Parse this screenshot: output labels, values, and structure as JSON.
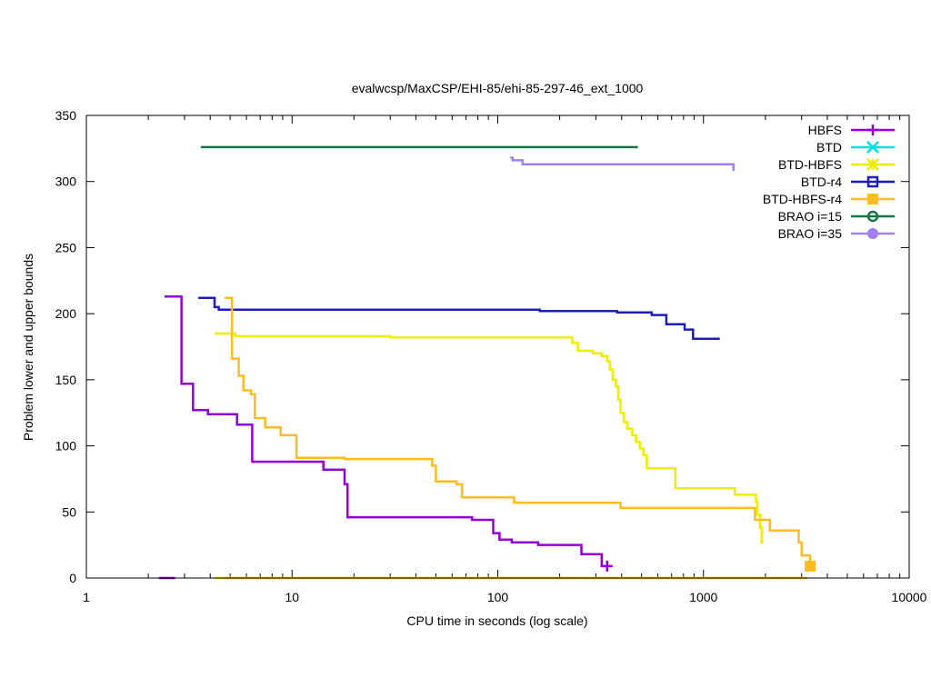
{
  "chart_data": {
    "type": "line",
    "title": "evalwcsp/MaxCSP/EHI-85/ehi-85-297-46_ext_1000",
    "xlabel": "CPU time in seconds (log scale)",
    "ylabel": "Problem lower and upper bounds",
    "xscale": "log",
    "xlim": [
      1,
      10000
    ],
    "ylim": [
      0,
      350
    ],
    "xticks": [
      1,
      10,
      100,
      1000,
      10000
    ],
    "xtick_labels": [
      "1",
      "10",
      "100",
      "1000",
      "10000"
    ],
    "yticks": [
      0,
      50,
      100,
      150,
      200,
      250,
      300,
      350
    ],
    "ytick_labels": [
      "0",
      "50",
      "100",
      "150",
      "200",
      "250",
      "300",
      "350"
    ],
    "legend_position": "top-right",
    "series": [
      {
        "name": "HBFS",
        "color": "#9400d3",
        "marker": "plus",
        "upper": [
          [
            2.4,
            213
          ],
          [
            2.9,
            213
          ],
          [
            2.9,
            147
          ],
          [
            3.3,
            147
          ],
          [
            3.3,
            127
          ],
          [
            3.9,
            127
          ],
          [
            3.9,
            124
          ],
          [
            5.4,
            124
          ],
          [
            5.4,
            116
          ],
          [
            6.4,
            116
          ],
          [
            6.4,
            88
          ],
          [
            14.2,
            88
          ],
          [
            14.2,
            82
          ],
          [
            18.0,
            82
          ],
          [
            18.0,
            71
          ],
          [
            18.6,
            71
          ],
          [
            18.6,
            46
          ],
          [
            75,
            46
          ],
          [
            75,
            44
          ],
          [
            95,
            44
          ],
          [
            95,
            34
          ],
          [
            102,
            34
          ],
          [
            102,
            29
          ],
          [
            117,
            29
          ],
          [
            117,
            27
          ],
          [
            157,
            27
          ],
          [
            157,
            25
          ],
          [
            255,
            25
          ],
          [
            255,
            18
          ],
          [
            320,
            18
          ],
          [
            320,
            9
          ],
          [
            340,
            9
          ]
        ],
        "lower": [
          [
            2.25,
            0
          ],
          [
            2.7,
            0
          ]
        ],
        "markers": [
          [
            340,
            9
          ]
        ]
      },
      {
        "name": "BTD",
        "color": "#00ddee",
        "marker": "x",
        "upper": [],
        "lower": [],
        "markers": []
      },
      {
        "name": "BTD-HBFS",
        "color": "#eeee00",
        "marker": "star",
        "upper": [
          [
            4.2,
            185
          ],
          [
            5.3,
            185
          ],
          [
            5.3,
            183
          ],
          [
            30,
            183
          ],
          [
            30,
            182
          ],
          [
            230,
            182
          ],
          [
            230,
            178
          ],
          [
            245,
            178
          ],
          [
            245,
            172
          ],
          [
            290,
            172
          ],
          [
            290,
            170
          ],
          [
            320,
            170
          ],
          [
            320,
            168
          ],
          [
            340,
            168
          ],
          [
            340,
            164
          ],
          [
            350,
            164
          ],
          [
            350,
            158
          ],
          [
            362,
            158
          ],
          [
            362,
            150
          ],
          [
            375,
            150
          ],
          [
            375,
            145
          ],
          [
            385,
            145
          ],
          [
            385,
            135
          ],
          [
            395,
            135
          ],
          [
            395,
            125
          ],
          [
            410,
            125
          ],
          [
            410,
            118
          ],
          [
            425,
            118
          ],
          [
            425,
            113
          ],
          [
            450,
            113
          ],
          [
            450,
            108
          ],
          [
            470,
            108
          ],
          [
            470,
            103
          ],
          [
            490,
            103
          ],
          [
            490,
            98
          ],
          [
            510,
            98
          ],
          [
            510,
            93
          ],
          [
            530,
            93
          ],
          [
            530,
            83
          ],
          [
            730,
            83
          ],
          [
            730,
            68
          ],
          [
            1420,
            68
          ],
          [
            1420,
            63
          ],
          [
            1800,
            63
          ],
          [
            1800,
            58
          ],
          [
            1830,
            58
          ],
          [
            1830,
            48
          ],
          [
            1880,
            48
          ],
          [
            1880,
            38
          ],
          [
            1920,
            38
          ],
          [
            1920,
            26
          ]
        ],
        "lower": [
          [
            4.2,
            0
          ],
          [
            3000,
            0
          ]
        ],
        "markers": []
      },
      {
        "name": "BTD-r4",
        "color": "#1e1eb4",
        "marker": "square",
        "upper": [
          [
            3.5,
            212
          ],
          [
            4.2,
            212
          ],
          [
            4.2,
            205
          ],
          [
            4.4,
            205
          ],
          [
            4.4,
            203
          ],
          [
            160,
            203
          ],
          [
            160,
            202
          ],
          [
            380,
            202
          ],
          [
            380,
            201
          ],
          [
            560,
            201
          ],
          [
            560,
            199
          ],
          [
            660,
            199
          ],
          [
            660,
            192
          ],
          [
            810,
            192
          ],
          [
            810,
            188
          ],
          [
            890,
            188
          ],
          [
            890,
            181
          ],
          [
            1200,
            181
          ]
        ],
        "lower": [],
        "markers": []
      },
      {
        "name": "BTD-HBFS-r4",
        "color": "#ffbb22",
        "marker": "filled-square",
        "upper": [
          [
            4.7,
            212
          ],
          [
            5.1,
            212
          ],
          [
            5.1,
            166
          ],
          [
            5.5,
            166
          ],
          [
            5.5,
            153
          ],
          [
            5.8,
            153
          ],
          [
            5.8,
            142
          ],
          [
            6.3,
            142
          ],
          [
            6.3,
            139
          ],
          [
            6.6,
            139
          ],
          [
            6.6,
            121
          ],
          [
            7.4,
            121
          ],
          [
            7.4,
            114
          ],
          [
            8.8,
            114
          ],
          [
            8.8,
            108
          ],
          [
            10.5,
            108
          ],
          [
            10.5,
            91
          ],
          [
            18,
            91
          ],
          [
            18,
            90
          ],
          [
            48,
            90
          ],
          [
            48,
            85
          ],
          [
            50,
            85
          ],
          [
            50,
            73
          ],
          [
            63,
            73
          ],
          [
            63,
            71
          ],
          [
            67,
            71
          ],
          [
            67,
            61
          ],
          [
            120,
            61
          ],
          [
            120,
            57
          ],
          [
            395,
            57
          ],
          [
            395,
            53
          ],
          [
            1780,
            53
          ],
          [
            1780,
            44
          ],
          [
            2100,
            44
          ],
          [
            2100,
            36
          ],
          [
            2900,
            36
          ],
          [
            2900,
            27
          ],
          [
            3000,
            27
          ],
          [
            3000,
            17
          ],
          [
            3300,
            17
          ],
          [
            3300,
            9
          ]
        ],
        "lower": [
          [
            4.7,
            0
          ],
          [
            3200,
            0
          ]
        ],
        "markers": [
          [
            3300,
            9
          ]
        ]
      },
      {
        "name": "BRAO i=15",
        "color": "#117744",
        "marker": "circle",
        "upper": [
          [
            3.6,
            326
          ],
          [
            480,
            326
          ]
        ],
        "lower": [],
        "markers": []
      },
      {
        "name": "BRAO i=35",
        "color": "#a080f0",
        "marker": "filled-circle",
        "upper": [
          [
            115,
            318
          ],
          [
            118,
            318
          ],
          [
            118,
            316
          ],
          [
            132,
            316
          ],
          [
            132,
            313
          ],
          [
            1400,
            313
          ],
          [
            1400,
            308
          ]
        ],
        "lower": [],
        "markers": []
      }
    ]
  }
}
